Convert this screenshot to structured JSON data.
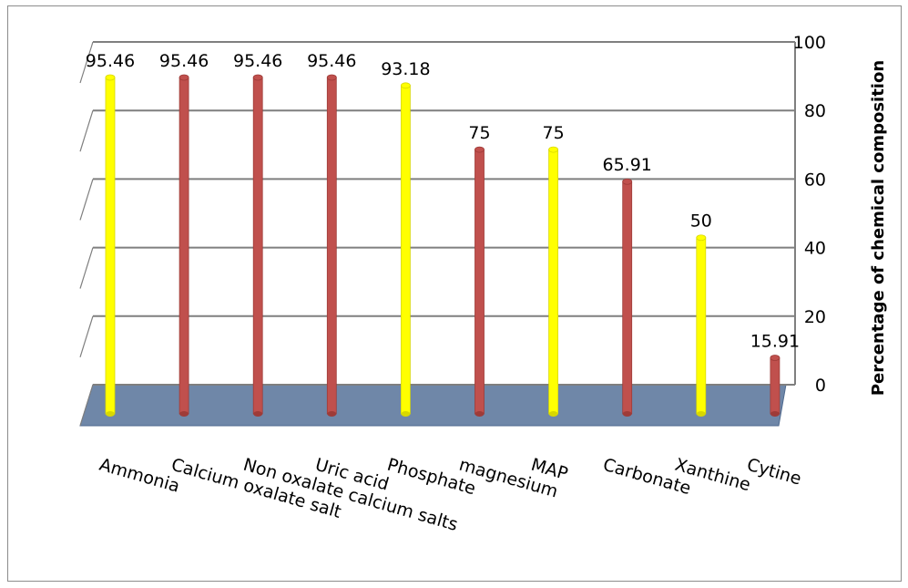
{
  "chart_data": {
    "type": "bar",
    "title": "",
    "xlabel": "",
    "ylabel": "Percentage of chemical composition",
    "ylim": [
      0,
      100
    ],
    "yticks": [
      "0",
      "20",
      "40",
      "60",
      "80",
      "100"
    ],
    "categories": [
      "Ammonia",
      "Calcium oxalate salt",
      "Non oxalate calcium salts",
      "Uric acid",
      "Phosphate",
      "magnesium",
      "MAP",
      "Carbonate",
      "Xanthine",
      "Cytine"
    ],
    "values": [
      95.46,
      95.46,
      95.46,
      95.46,
      93.18,
      75,
      75,
      65.91,
      50,
      15.91
    ],
    "value_labels": [
      "95.46",
      "95.46",
      "95.46",
      "95.46",
      "93.18",
      "75",
      "75",
      "65.91",
      "50",
      "15.91"
    ],
    "bar_colors": [
      "#ffff00",
      "#c0504d",
      "#c0504d",
      "#c0504d",
      "#ffff00",
      "#c0504d",
      "#ffff00",
      "#c0504d",
      "#ffff00",
      "#c0504d"
    ],
    "grid": true,
    "legend": "none",
    "floor_color": "#6f87a8"
  }
}
